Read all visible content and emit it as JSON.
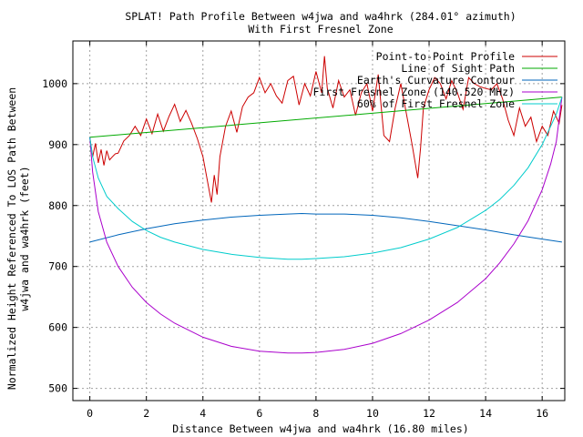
{
  "chart_data": {
    "type": "line",
    "title": "SPLAT! Path Profile Between w4jwa and wa4hrk (284.01° azimuth)",
    "subtitle": "With First Fresnel Zone",
    "xlabel": "Distance Between w4jwa and wa4hrk (16.80 miles)",
    "ylabel_line1": "Normalized Height Referenced To LOS Path Between",
    "ylabel_line2": "w4jwa and wa4hrk (feet)",
    "xlim": [
      -0.6,
      16.8
    ],
    "ylim": [
      480,
      1070
    ],
    "x_ticks": [
      0,
      2,
      4,
      6,
      8,
      10,
      12,
      14,
      16
    ],
    "x_tick_labels": [
      "0",
      "2",
      "4",
      "6",
      "8",
      "10",
      "12",
      "14",
      "16"
    ],
    "y_ticks": [
      500,
      600,
      700,
      800,
      900,
      1000
    ],
    "y_tick_labels": [
      "500",
      "600",
      "700",
      "800",
      "900",
      "1000"
    ],
    "grid": true,
    "legend_position": "top-right",
    "series": [
      {
        "name": "Point-to-Point Profile",
        "color": "#cc0000",
        "x": [
          0,
          0.1,
          0.2,
          0.3,
          0.4,
          0.5,
          0.6,
          0.7,
          0.8,
          0.9,
          1.0,
          1.2,
          1.4,
          1.6,
          1.8,
          2.0,
          2.2,
          2.4,
          2.6,
          2.8,
          3.0,
          3.2,
          3.4,
          3.6,
          3.8,
          4.0,
          4.2,
          4.3,
          4.4,
          4.5,
          4.6,
          4.8,
          5.0,
          5.2,
          5.4,
          5.6,
          5.8,
          6.0,
          6.2,
          6.4,
          6.6,
          6.8,
          7.0,
          7.2,
          7.4,
          7.6,
          7.8,
          8.0,
          8.2,
          8.3,
          8.4,
          8.6,
          8.8,
          9.0,
          9.2,
          9.4,
          9.6,
          9.8,
          10.0,
          10.2,
          10.4,
          10.6,
          10.8,
          11.0,
          11.2,
          11.4,
          11.6,
          11.7,
          11.8,
          12.0,
          12.2,
          12.4,
          12.6,
          12.8,
          13.0,
          13.2,
          13.4,
          13.6,
          13.8,
          14.0,
          14.2,
          14.4,
          14.6,
          14.8,
          15.0,
          15.2,
          15.4,
          15.6,
          15.8,
          16.0,
          16.2,
          16.4,
          16.6,
          16.7
        ],
        "values": [
          912,
          880,
          902,
          870,
          892,
          866,
          890,
          875,
          880,
          885,
          886,
          906,
          915,
          930,
          915,
          942,
          918,
          950,
          922,
          946,
          966,
          938,
          956,
          935,
          910,
          880,
          830,
          805,
          850,
          818,
          880,
          930,
          955,
          920,
          962,
          978,
          985,
          1010,
          985,
          1000,
          980,
          968,
          1005,
          1012,
          965,
          1000,
          980,
          1020,
          985,
          1045,
          992,
          960,
          1005,
          978,
          990,
          948,
          985,
          1000,
          955,
          1015,
          915,
          905,
          960,
          1000,
          950,
          900,
          845,
          895,
          960,
          990,
          1010,
          1000,
          975,
          1005,
          985,
          958,
          1010,
          1000,
          995,
          992,
          990,
          1000,
          975,
          940,
          915,
          960,
          930,
          945,
          905,
          930,
          915,
          955,
          935,
          965
        ]
      },
      {
        "name": "Line of Sight Path",
        "color": "#00aa00",
        "x": [
          0,
          16.7
        ],
        "values": [
          912,
          978
        ]
      },
      {
        "name": "Earth's Curvature Contour",
        "color": "#0066bb",
        "x": [
          0,
          1,
          2,
          3,
          4,
          5,
          6,
          7,
          7.5,
          8,
          9,
          10,
          11,
          12,
          13,
          14,
          15,
          16,
          16.7
        ],
        "values": [
          740,
          752,
          762,
          770,
          776,
          781,
          784,
          786,
          787,
          786,
          786,
          784,
          780,
          774,
          767,
          760,
          752,
          745,
          740
        ]
      },
      {
        "name": "First Fresnel Zone (140.520 MHz)",
        "color": "#aa00cc",
        "x": [
          0,
          0.1,
          0.3,
          0.6,
          1,
          1.5,
          2,
          2.5,
          3,
          4,
          5,
          6,
          7,
          7.5,
          8,
          9,
          10,
          11,
          12,
          13,
          14,
          14.5,
          15,
          15.5,
          16,
          16.3,
          16.5,
          16.7
        ],
        "values": [
          912,
          855,
          790,
          740,
          700,
          666,
          641,
          622,
          607,
          584,
          569,
          561,
          558,
          558,
          559,
          564,
          574,
          590,
          612,
          641,
          680,
          706,
          737,
          775,
          826,
          868,
          905,
          978
        ]
      },
      {
        "name": "60% of First Fresnel Zone",
        "color": "#00cccc",
        "x": [
          0,
          0.1,
          0.3,
          0.6,
          1,
          1.5,
          2,
          2.5,
          3,
          4,
          5,
          6,
          7,
          7.5,
          8,
          9,
          10,
          11,
          12,
          13,
          14,
          14.5,
          15,
          15.5,
          16,
          16.3,
          16.5,
          16.7
        ],
        "values": [
          912,
          880,
          845,
          815,
          795,
          774,
          759,
          748,
          740,
          728,
          720,
          715,
          712,
          712,
          713,
          716,
          722,
          731,
          745,
          764,
          792,
          810,
          833,
          862,
          900,
          930,
          950,
          978
        ]
      }
    ]
  }
}
